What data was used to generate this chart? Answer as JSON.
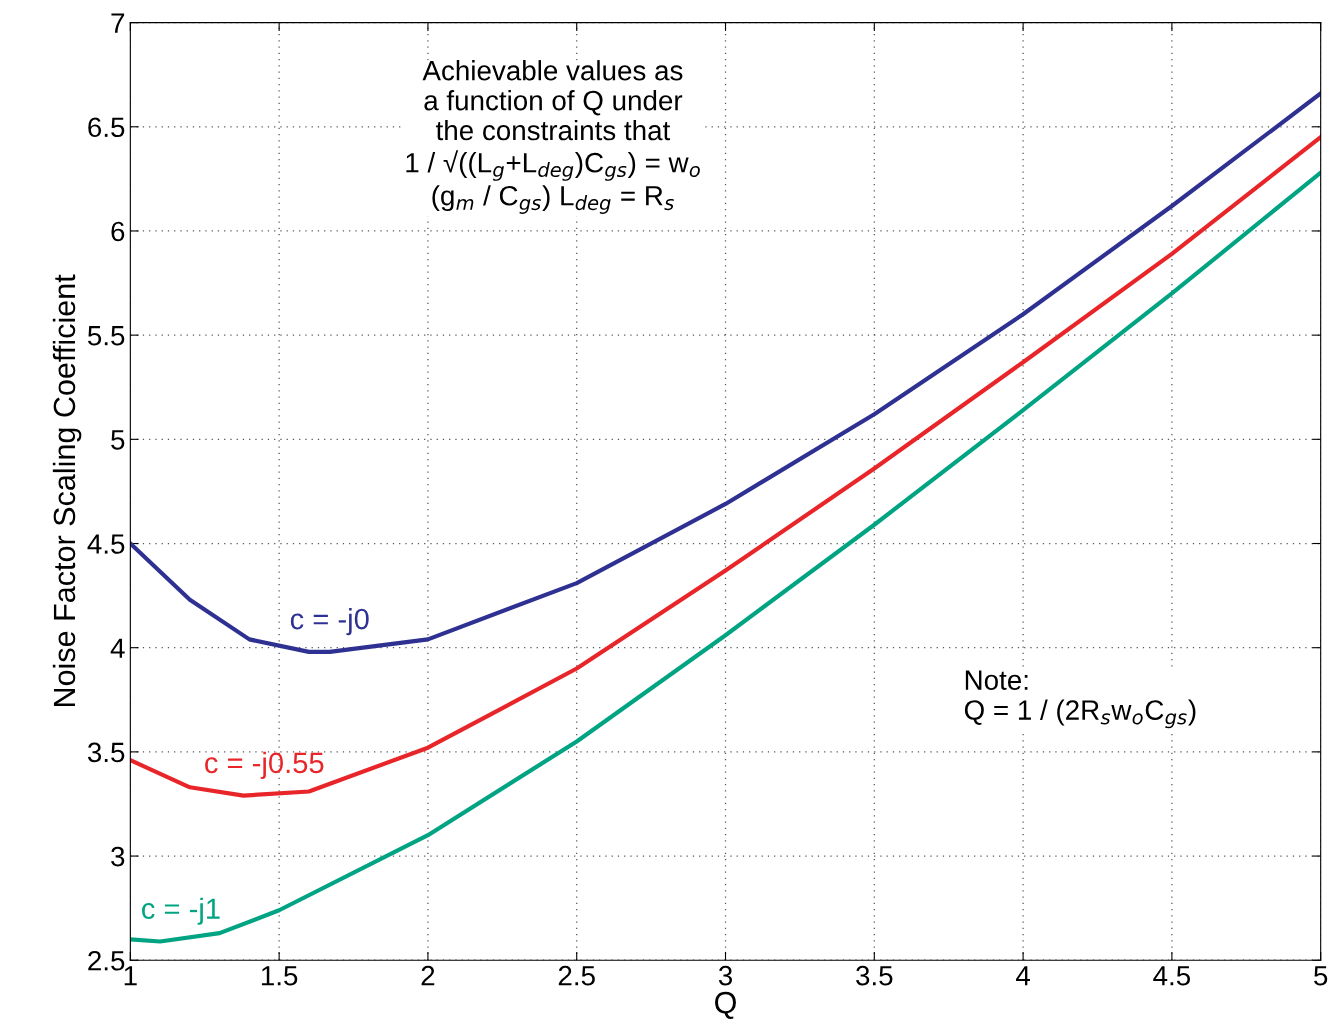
{
  "chart_data": {
    "type": "line",
    "xlabel": "Q",
    "ylabel": "Noise Factor Scaling Coefficient",
    "xlim": [
      1,
      5
    ],
    "xticks": [
      1,
      1.5,
      2,
      2.5,
      3,
      3.5,
      4,
      4.5,
      5
    ],
    "ylim": [
      2.5,
      7
    ],
    "yticks": [
      2.5,
      3,
      3.5,
      4,
      4.5,
      5,
      5.5,
      6,
      6.5,
      7
    ],
    "grid": true,
    "legend": false,
    "line_style": "solid",
    "marker": "none",
    "series": [
      {
        "name": "c = -j0",
        "color": "#2e3192",
        "x": [
          1,
          1.2,
          1.4,
          1.6,
          1.67,
          2,
          2.5,
          3,
          3.5,
          4,
          4.5,
          5
        ],
        "values": [
          4.5,
          4.23,
          4.04,
          3.98,
          3.98,
          4.04,
          4.31,
          4.69,
          5.12,
          5.6,
          6.12,
          6.66
        ]
      },
      {
        "name": "c = -j0.55",
        "color": "#e8262a",
        "x": [
          1,
          1.2,
          1.38,
          1.6,
          2,
          2.5,
          3,
          3.5,
          4,
          4.5,
          5
        ],
        "values": [
          3.46,
          3.33,
          3.29,
          3.31,
          3.52,
          3.9,
          4.37,
          4.86,
          5.37,
          5.89,
          6.45
        ]
      },
      {
        "name": "c = -j1",
        "color": "#00a482",
        "x": [
          1,
          1.1,
          1.3,
          1.5,
          2,
          2.5,
          3,
          3.5,
          4,
          4.5,
          5
        ],
        "values": [
          2.6,
          2.59,
          2.63,
          2.74,
          3.1,
          3.55,
          4.06,
          4.59,
          5.14,
          5.7,
          6.28
        ]
      }
    ],
    "annotations": [
      "Achievable values as\na function of Q under\nthe constraints that\n1 / √((L$_{g}$+L$_{deg}$)C$_{gs}$) = w$_{o}$\n(g$_{m}$ / C$_{gs}$) L$_{deg}$ = R$_{s}$",
      "Note:\nQ = 1 / (2R$_{s}$w$_{o}$C$_{gs}$)"
    ]
  }
}
